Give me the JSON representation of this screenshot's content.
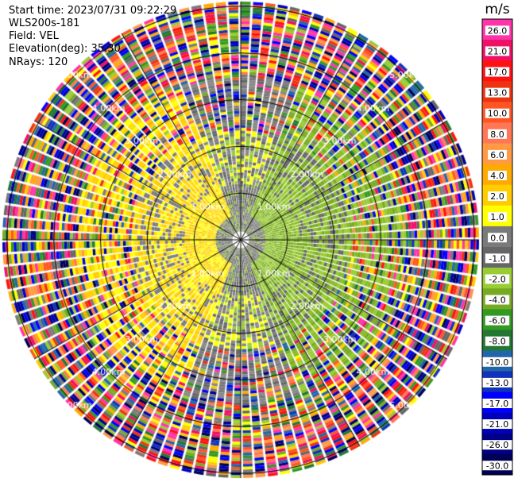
{
  "header": {
    "start_time": "Start time: 2023/07/31 09:22:29",
    "instrument": "WLS200s-181",
    "field": "Field: VEL",
    "elevation": "Elevation(deg): 35.30",
    "nrays": "NRays: 120"
  },
  "chart_data": {
    "type": "heatmap",
    "projection": "polar PPI",
    "field": "VEL",
    "units": "m/s",
    "elevation_deg": 35.3,
    "n_rays": 120,
    "range_rings_km": [
      1.0,
      2.0,
      3.0,
      4.0,
      5.0
    ],
    "range_labels": [
      "1.00km",
      "2.00km",
      "3.00km",
      "4.00km",
      "5.00km"
    ],
    "colorbar": {
      "title": "m/s",
      "ticks": [
        "26.0",
        "21.0",
        "17.0",
        "13.0",
        "10.0",
        "8.0",
        "6.0",
        "4.0",
        "2.0",
        "1.0",
        "0.0",
        "-1.0",
        "-2.0",
        "-4.0",
        "-6.0",
        "-8.0",
        "-10.0",
        "-13.0",
        "-17.0",
        "-21.0",
        "-26.0",
        "-30.0"
      ],
      "colors": [
        "#ff33aa",
        "#ee1166",
        "#ff1111",
        "#ee3311",
        "#ff5522",
        "#ff7755",
        "#ff9944",
        "#ffaa00",
        "#ffcc00",
        "#ffff00",
        "#7a7a7a",
        "#666666",
        "#99cc33",
        "#77aa22",
        "#339922",
        "#227733",
        "#2266aa",
        "#1133bb",
        "#0000ff",
        "#0000bb",
        "#000088",
        "#000055"
      ]
    },
    "pattern": {
      "inner_km": 1.2,
      "mid_km": 2.3,
      "outer_noise_from_km": 3.5,
      "positive_sector_deg": [
        200,
        340
      ],
      "negative_sector_deg": [
        20,
        160
      ]
    }
  }
}
